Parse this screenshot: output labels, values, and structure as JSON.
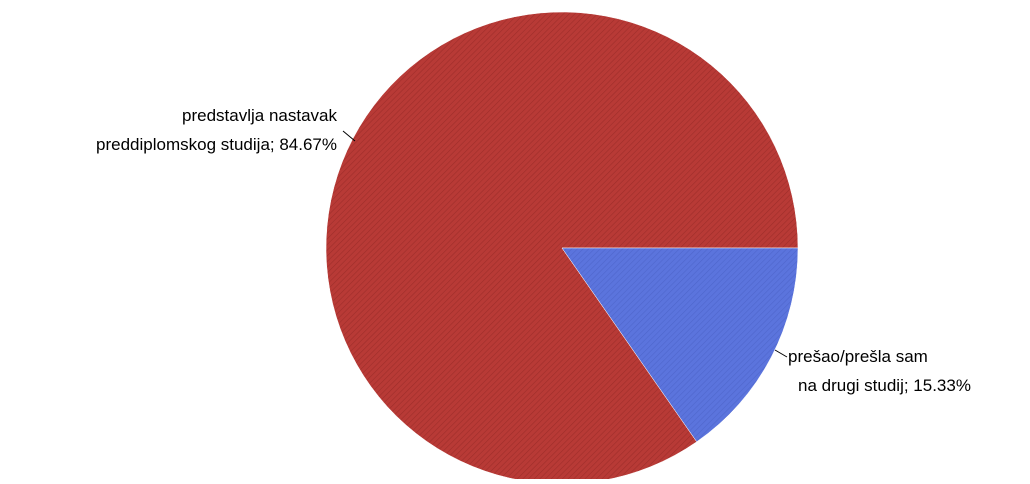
{
  "chart_data": {
    "type": "pie",
    "title": "",
    "slices": [
      {
        "label_lines": [
          "predstavlja nastavak",
          "preddiplomskog studija; 84.67%"
        ],
        "category": "predstavlja nastavak preddiplomskog studija",
        "value": 84.67,
        "color": "#b83a36"
      },
      {
        "label_lines": [
          "prešao/prešla sam",
          "na drugi studij; 15.33%"
        ],
        "category": "prešao/prešla sam na drugi studij",
        "value": 15.33,
        "color": "#5b74dd"
      }
    ],
    "legend": "none",
    "data_labels": "outside with leader lines"
  }
}
